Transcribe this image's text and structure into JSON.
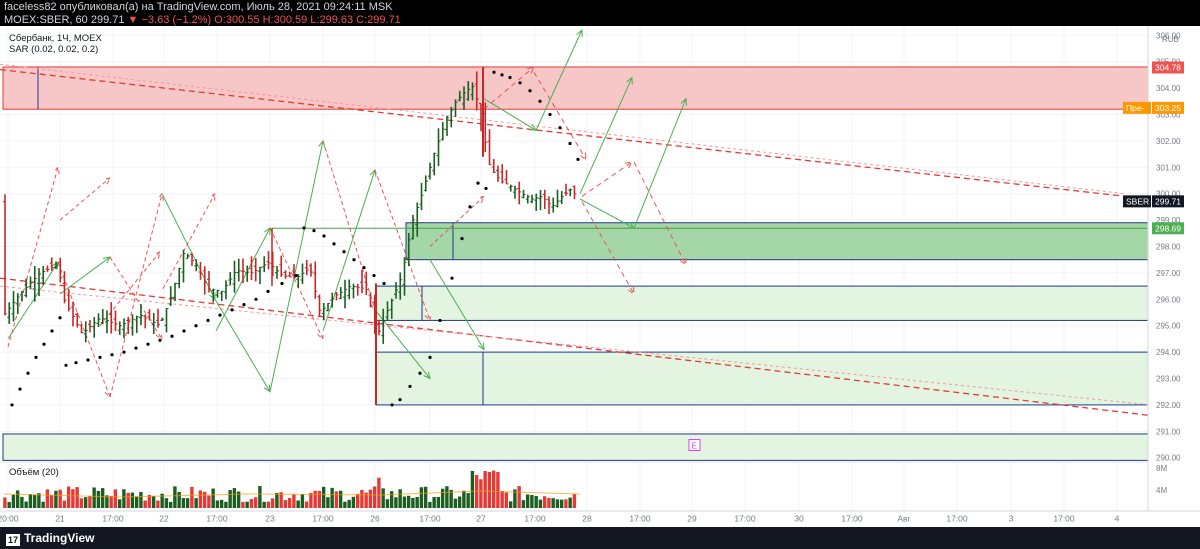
{
  "header": {
    "line1": "faceless82 опубликовал(а) на TradingView.com, Июль 28, 2021 09:24:11 MSK",
    "symbol": "MOEX:SBER, 60",
    "last": "299.71",
    "change": "▼ −3.63 (−1.2%)",
    "ohlc": "O:300.55 H:300.59 L:299.63 C:299.71"
  },
  "legend": {
    "title": "Сбербанк, 1Ч, MOEX",
    "sar": "SAR (0.02, 0.02, 0.2)",
    "volume": "Объём (20)"
  },
  "footer": {
    "logo": "TradingView"
  },
  "chart_data": {
    "type": "candlestick",
    "currency": "RUB",
    "ylim": [
      289.8,
      306.2
    ],
    "y_ticks": [
      290,
      291,
      292,
      293,
      294,
      295,
      296,
      297,
      298,
      299,
      300,
      301,
      302,
      303,
      304,
      305,
      306
    ],
    "x_tick_labels": [
      "20:00",
      "21",
      "17:00",
      "22",
      "17:00",
      "23",
      "17:00",
      "26",
      "17:00",
      "27",
      "17:00",
      "28",
      "17:00",
      "29",
      "17:00",
      "30",
      "17:00",
      "Авг",
      "17:00",
      "3",
      "17:00",
      "4"
    ],
    "volume_ticks": [
      "8M",
      "4M"
    ],
    "price_labels": [
      {
        "text": "304.78",
        "value": 304.78,
        "color": "#ef5350"
      },
      {
        "text": "303.25",
        "value": 303.25,
        "color": "#ff9800",
        "prefix": "Пре-"
      },
      {
        "text": "299.71",
        "value": 299.71,
        "color": "#131722",
        "prefix": "SBER"
      },
      {
        "text": "298.69",
        "value": 298.69,
        "color": "#4caf50"
      }
    ],
    "zones": [
      {
        "from": 303.2,
        "to": 304.8,
        "color": "#f7c6c7",
        "border": "#e53935",
        "x0": "20:00",
        "x1": "end"
      },
      {
        "from": 297.5,
        "to": 298.9,
        "color": "#a5d6a7",
        "border": "#1e3a8a",
        "x0": "26 17:00",
        "x1": "end"
      },
      {
        "from": 295.2,
        "to": 296.5,
        "color": "#e3f4e1",
        "border": "#1e3a8a",
        "x0": "26",
        "x1": "end"
      },
      {
        "from": 292.0,
        "to": 294.0,
        "color": "#e3f4e1",
        "border": "#1e3a8a",
        "x0": "26",
        "x1": "end"
      },
      {
        "from": 289.9,
        "to": 290.9,
        "color": "#e3f4e1",
        "border": "#1e3a8a",
        "x0": "20:00",
        "x1": "end"
      }
    ],
    "event_marker": "E"
  }
}
